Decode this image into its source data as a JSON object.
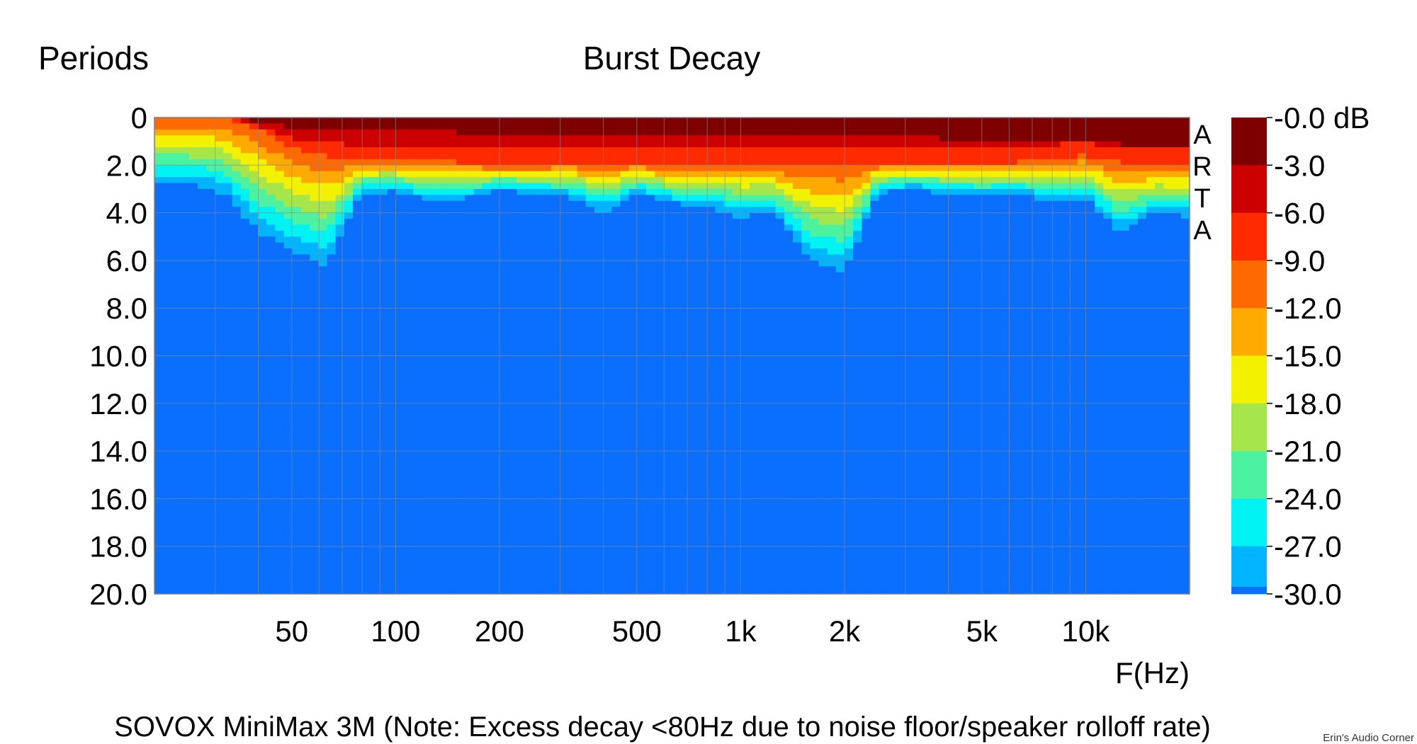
{
  "chart_data": {
    "type": "heatmap",
    "title": "Burst Decay",
    "ylabel": "Periods",
    "xlabel": "F(Hz)",
    "x_scale": "log",
    "xlim": [
      20,
      20000
    ],
    "ylim": [
      20,
      0
    ],
    "x_ticks": [
      {
        "value": 50,
        "label": "50"
      },
      {
        "value": 100,
        "label": "100"
      },
      {
        "value": 200,
        "label": "200"
      },
      {
        "value": 500,
        "label": "500"
      },
      {
        "value": 1000,
        "label": "1k"
      },
      {
        "value": 2000,
        "label": "2k"
      },
      {
        "value": 5000,
        "label": "5k"
      },
      {
        "value": 10000,
        "label": "10k"
      }
    ],
    "y_ticks": [
      {
        "value": 0,
        "label": "0"
      },
      {
        "value": 2,
        "label": "2.0"
      },
      {
        "value": 4,
        "label": "4.0"
      },
      {
        "value": 6,
        "label": "6.0"
      },
      {
        "value": 8,
        "label": "8.0"
      },
      {
        "value": 10,
        "label": "10.0"
      },
      {
        "value": 12,
        "label": "12.0"
      },
      {
        "value": 14,
        "label": "14.0"
      },
      {
        "value": 16,
        "label": "16.0"
      },
      {
        "value": 18,
        "label": "18.0"
      },
      {
        "value": 20,
        "label": "20.0"
      }
    ],
    "grid": true,
    "vendor_mark": [
      "A",
      "R",
      "T",
      "A"
    ],
    "colorbar": {
      "labels": [
        "-0.0 dB",
        "-3.0",
        "-6.0",
        "-9.0",
        "-12.0",
        "-15.0",
        "-18.0",
        "-21.0",
        "-24.0",
        "-27.0",
        "-30.0"
      ],
      "colors": [
        "#7f0000",
        "#cc0000",
        "#ff2a00",
        "#ff6a00",
        "#ffaa00",
        "#f2f200",
        "#a6e64a",
        "#4cf2a0",
        "#00f2f2",
        "#00b4ff",
        "#0a6eff"
      ]
    },
    "decay_profile": {
      "note": "",
      "freq": [
        25,
        32,
        40,
        50,
        63,
        80,
        100,
        125,
        160,
        200,
        250,
        315,
        400,
        500,
        630,
        800,
        1000,
        1250,
        1600,
        2000,
        2500,
        3150,
        4000,
        5000,
        6300,
        8000,
        10000,
        12500,
        16000,
        20000
      ],
      "periods_to_-9dB": [
        0,
        0,
        0.5,
        1.3,
        1.6,
        1.8,
        1.8,
        1.8,
        1.9,
        2.0,
        2.0,
        1.9,
        1.9,
        1.9,
        2.0,
        1.9,
        1.9,
        2.0,
        2.0,
        2.0,
        1.9,
        1.9,
        1.9,
        1.9,
        1.9,
        1.7,
        1.6,
        1.9,
        2.0,
        2.0
      ],
      "periods_to_-30dB": [
        2.8,
        3.2,
        4.8,
        5.6,
        6.2,
        3.2,
        3.1,
        3.5,
        3.4,
        3.0,
        3.2,
        3.3,
        4.0,
        3.2,
        3.6,
        3.7,
        4.2,
        4.0,
        6.0,
        6.5,
        3.2,
        3.0,
        3.2,
        3.3,
        3.2,
        3.5,
        3.4,
        4.8,
        4.0,
        4.2
      ]
    }
  },
  "caption": "SOVOX MiniMax 3M (Note: Excess decay <80Hz due to noise floor/speaker rolloff rate)",
  "credit": "Erin's Audio Corner"
}
